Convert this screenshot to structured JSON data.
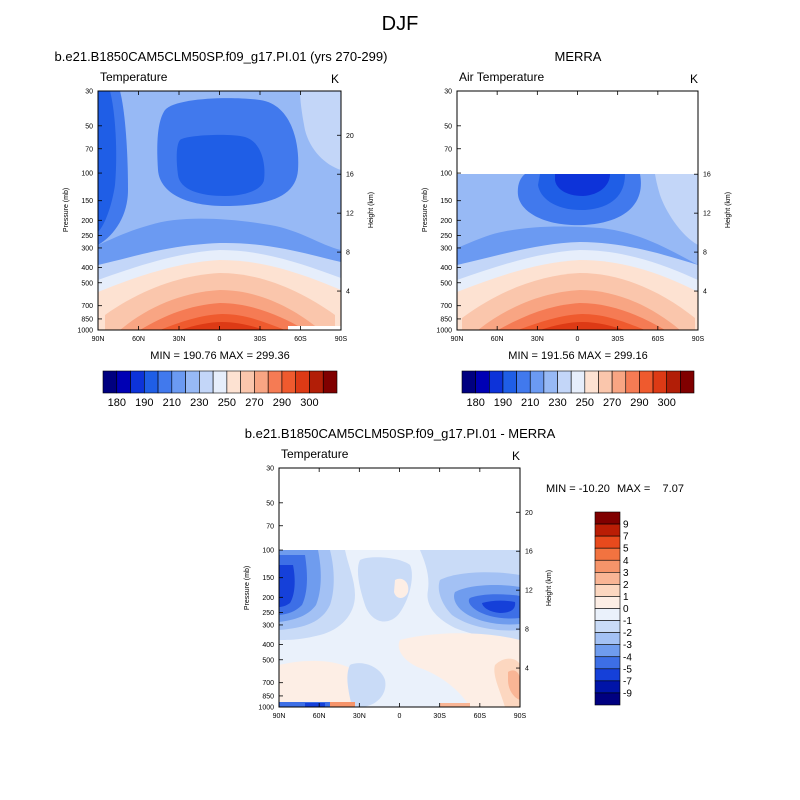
{
  "figure": {
    "title": "DJF"
  },
  "chart_data": [
    {
      "type": "heatmap",
      "title": "b.e21.B1850CAM5CLM50SP.f09_g17.PI.01 (yrs 270-299)",
      "subtitle_left": "Temperature",
      "subtitle_right": "K",
      "xlabel": "",
      "ylabel": "Pressure (mb)",
      "ylabel_right": "Height (km)",
      "x_ticks": [
        "90N",
        "60N",
        "30N",
        "0",
        "30S",
        "60S",
        "90S"
      ],
      "y_ticks": [
        "30",
        "50",
        "70",
        "100",
        "150",
        "200",
        "250",
        "300",
        "400",
        "500",
        "700",
        "850",
        "1000"
      ],
      "height_ticks": [
        "20",
        "16",
        "12",
        "8",
        "4"
      ],
      "stats": "MIN = 190.76   MAX = 299.36",
      "data_top_mb": 30,
      "colorbar": {
        "orientation": "horizontal",
        "levels": [
          180,
          185,
          190,
          200,
          210,
          220,
          230,
          240,
          250,
          260,
          270,
          280,
          290,
          295,
          300
        ],
        "labels": [
          "180",
          "190",
          "210",
          "230",
          "250",
          "270",
          "290",
          "300"
        ]
      }
    },
    {
      "type": "heatmap",
      "title": "MERRA",
      "subtitle_left": "Air Temperature",
      "subtitle_right": "K",
      "xlabel": "",
      "ylabel": "Pressure (mb)",
      "ylabel_right": "Height (km)",
      "x_ticks": [
        "90N",
        "60N",
        "30N",
        "0",
        "30S",
        "60S",
        "90S"
      ],
      "y_ticks": [
        "30",
        "50",
        "70",
        "100",
        "150",
        "200",
        "250",
        "300",
        "400",
        "500",
        "700",
        "850",
        "1000"
      ],
      "height_ticks": [
        "16",
        "12",
        "8",
        "4"
      ],
      "stats": "MIN = 191.56   MAX = 299.16",
      "data_top_mb": 100,
      "colorbar": {
        "orientation": "horizontal",
        "levels": [
          180,
          185,
          190,
          200,
          210,
          220,
          230,
          240,
          250,
          260,
          270,
          280,
          290,
          295,
          300
        ],
        "labels": [
          "180",
          "190",
          "210",
          "230",
          "250",
          "270",
          "290",
          "300"
        ]
      }
    },
    {
      "type": "heatmap",
      "title": "b.e21.B1850CAM5CLM50SP.f09_g17.PI.01 - MERRA",
      "subtitle_left": "Temperature",
      "subtitle_right": "K",
      "xlabel": "",
      "ylabel": "Pressure (mb)",
      "ylabel_right": "Height (km)",
      "x_ticks": [
        "90N",
        "60N",
        "30N",
        "0",
        "30S",
        "60S",
        "90S"
      ],
      "y_ticks": [
        "30",
        "50",
        "70",
        "100",
        "150",
        "200",
        "250",
        "300",
        "400",
        "500",
        "700",
        "850",
        "1000"
      ],
      "height_ticks": [
        "20",
        "16",
        "12",
        "8",
        "4"
      ],
      "stats_label_min": "MIN = -10.20",
      "stats_label_max": "MAX =    7.07",
      "data_top_mb": 100,
      "colorbar": {
        "orientation": "vertical",
        "levels": [
          9,
          7,
          5,
          4,
          3,
          2,
          1,
          0,
          -1,
          -2,
          -3,
          -4,
          -5,
          -7,
          -9
        ],
        "labels": [
          "9",
          "7",
          "5",
          "4",
          "3",
          "2",
          "1",
          "0",
          "-1",
          "-2",
          "-3",
          "-4",
          "-5",
          "-7",
          "-9"
        ]
      }
    }
  ],
  "colors": {
    "abs_scale": [
      "#000080",
      "#0000b4",
      "#0d33d9",
      "#1f5ee6",
      "#4179ed",
      "#6b9af2",
      "#97b9f5",
      "#c3d6f8",
      "#e6eefb",
      "#fde2d2",
      "#fac6ac",
      "#f8a583",
      "#f57b54",
      "#ef5a2e",
      "#dd3a15",
      "#b21e07",
      "#800000"
    ],
    "diff_scale": [
      "#800000",
      "#ba1d05",
      "#e84a1d",
      "#f27340",
      "#f6946a",
      "#f9b595",
      "#fcd7c0",
      "#fdeee5",
      "#eaf1fb",
      "#c9dbf7",
      "#a3c1f4",
      "#6f9cee",
      "#3d6fe6",
      "#1540d9",
      "#0014a8",
      "#000080"
    ]
  }
}
